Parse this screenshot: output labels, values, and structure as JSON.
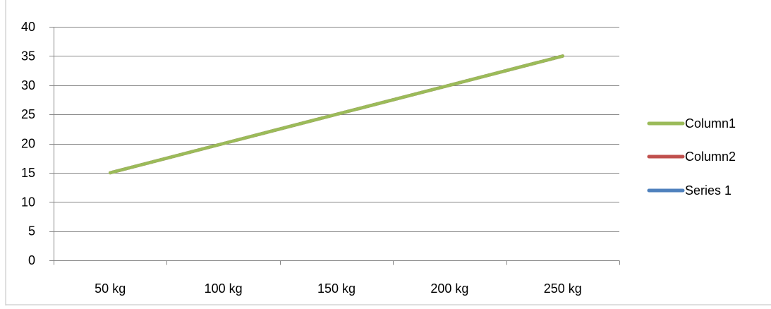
{
  "chart_data": {
    "type": "line",
    "title": "",
    "xlabel": "",
    "ylabel": "",
    "categories": [
      "50 kg",
      "100 kg",
      "150 kg",
      "200 kg",
      "250 kg"
    ],
    "ylim": [
      0,
      40
    ],
    "yticks": [
      0,
      5,
      10,
      15,
      20,
      25,
      30,
      35,
      40
    ],
    "grid": true,
    "legend_position": "right",
    "series": [
      {
        "name": "Column1",
        "color": "#9BBB59",
        "values": [
          15,
          20,
          25,
          30,
          35
        ]
      },
      {
        "name": "Column2",
        "color": "#C0504D",
        "values": [
          15,
          20,
          25,
          30,
          35
        ]
      },
      {
        "name": "Series 1",
        "color": "#4F81BD",
        "values": [
          15,
          20,
          25,
          30,
          35
        ]
      }
    ],
    "draw_order": [
      2,
      1,
      0
    ]
  }
}
